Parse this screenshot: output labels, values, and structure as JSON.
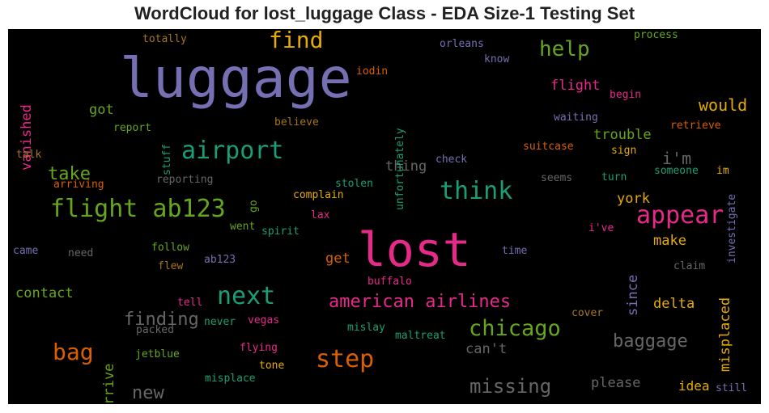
{
  "title": "WordCloud for lost_luggage Class - EDA Size-1 Testing Set",
  "chart_data": {
    "type": "wordcloud",
    "background": "#000000",
    "palette": [
      "#7570b3",
      "#e7298a",
      "#1b9e77",
      "#66a61e",
      "#e6ab02",
      "#d95f02",
      "#a6761d",
      "#666666"
    ],
    "words": [
      {
        "text": "luggage",
        "color": "#7570b3"
      },
      {
        "text": "lost",
        "color": "#e7298a"
      },
      {
        "text": "flight ab123",
        "color": "#66a61e"
      },
      {
        "text": "airport",
        "color": "#1b9e77"
      },
      {
        "text": "find",
        "color": "#e6ab02"
      },
      {
        "text": "appear",
        "color": "#e7298a"
      },
      {
        "text": "think",
        "color": "#1b9e77"
      },
      {
        "text": "next",
        "color": "#1b9e77"
      },
      {
        "text": "chicago",
        "color": "#66a61e"
      },
      {
        "text": "step",
        "color": "#d95f02"
      },
      {
        "text": "bag",
        "color": "#d95f02"
      },
      {
        "text": "help",
        "color": "#66a61e"
      },
      {
        "text": "american airlines",
        "color": "#e7298a"
      },
      {
        "text": "baggage",
        "color": "#666666"
      },
      {
        "text": "missing",
        "color": "#666666"
      },
      {
        "text": "finding",
        "color": "#666666"
      },
      {
        "text": "take",
        "color": "#66a61e"
      },
      {
        "text": "would",
        "color": "#e6ab02"
      },
      {
        "text": "misplaced",
        "color": "#e6ab02"
      },
      {
        "text": "new",
        "color": "#666666"
      },
      {
        "text": "i'm",
        "color": "#666666"
      },
      {
        "text": "since",
        "color": "#7570b3"
      },
      {
        "text": "arrive",
        "color": "#66a61e"
      },
      {
        "text": "vanished",
        "color": "#e7298a"
      },
      {
        "text": "trouble",
        "color": "#66a61e"
      },
      {
        "text": "flight",
        "color": "#e7298a"
      },
      {
        "text": "contact",
        "color": "#66a61e"
      },
      {
        "text": "thing",
        "color": "#666666"
      },
      {
        "text": "got",
        "color": "#66a61e"
      },
      {
        "text": "york",
        "color": "#e6ab02"
      },
      {
        "text": "make",
        "color": "#e6ab02"
      },
      {
        "text": "delta",
        "color": "#e6ab02"
      },
      {
        "text": "get",
        "color": "#d95f02"
      },
      {
        "text": "please",
        "color": "#666666"
      },
      {
        "text": "idea",
        "color": "#e6ab02"
      },
      {
        "text": "can't",
        "color": "#666666"
      },
      {
        "text": "unfortunately",
        "color": "#1b9e77"
      },
      {
        "text": "investigate",
        "color": "#7570b3"
      },
      {
        "text": "totally",
        "color": "#a6761d"
      },
      {
        "text": "orleans",
        "color": "#7570b3"
      },
      {
        "text": "know",
        "color": "#7570b3"
      },
      {
        "text": "process",
        "color": "#66a61e"
      },
      {
        "text": "iodin",
        "color": "#d95f02"
      },
      {
        "text": "begin",
        "color": "#e7298a"
      },
      {
        "text": "waiting",
        "color": "#7570b3"
      },
      {
        "text": "retrieve",
        "color": "#d95f02"
      },
      {
        "text": "report",
        "color": "#66a61e"
      },
      {
        "text": "stuff",
        "color": "#1b9e77"
      },
      {
        "text": "believe",
        "color": "#a6761d"
      },
      {
        "text": "sign",
        "color": "#e6ab02"
      },
      {
        "text": "suitcase",
        "color": "#d95f02"
      },
      {
        "text": "talk",
        "color": "#a6761d"
      },
      {
        "text": "check",
        "color": "#7570b3"
      },
      {
        "text": "someone",
        "color": "#1b9e77"
      },
      {
        "text": "im",
        "color": "#e6ab02"
      },
      {
        "text": "reporting",
        "color": "#666666"
      },
      {
        "text": "stolen",
        "color": "#1b9e77"
      },
      {
        "text": "seems",
        "color": "#666666"
      },
      {
        "text": "turn",
        "color": "#1b9e77"
      },
      {
        "text": "arriving",
        "color": "#d95f02"
      },
      {
        "text": "go",
        "color": "#66a61e"
      },
      {
        "text": "complain",
        "color": "#e6ab02"
      },
      {
        "text": "lax",
        "color": "#e7298a"
      },
      {
        "text": "went",
        "color": "#66a61e"
      },
      {
        "text": "spirit",
        "color": "#1b9e77"
      },
      {
        "text": "i've",
        "color": "#e7298a"
      },
      {
        "text": "came",
        "color": "#7570b3"
      },
      {
        "text": "need",
        "color": "#666666"
      },
      {
        "text": "follow",
        "color": "#66a61e"
      },
      {
        "text": "flew",
        "color": "#a6761d"
      },
      {
        "text": "ab123",
        "color": "#7570b3"
      },
      {
        "text": "time",
        "color": "#7570b3"
      },
      {
        "text": "claim",
        "color": "#666666"
      },
      {
        "text": "buffalo",
        "color": "#e7298a"
      },
      {
        "text": "tell",
        "color": "#e7298a"
      },
      {
        "text": "cover",
        "color": "#a6761d"
      },
      {
        "text": "packed",
        "color": "#666666"
      },
      {
        "text": "never",
        "color": "#1b9e77"
      },
      {
        "text": "vegas",
        "color": "#e7298a"
      },
      {
        "text": "mislay",
        "color": "#1b9e77"
      },
      {
        "text": "maltreat",
        "color": "#1b9e77"
      },
      {
        "text": "jetblue",
        "color": "#66a61e"
      },
      {
        "text": "flying",
        "color": "#e7298a"
      },
      {
        "text": "tone",
        "color": "#e6ab02"
      },
      {
        "text": "misplace",
        "color": "#1b9e77"
      },
      {
        "text": "still",
        "color": "#7570b3"
      }
    ]
  }
}
